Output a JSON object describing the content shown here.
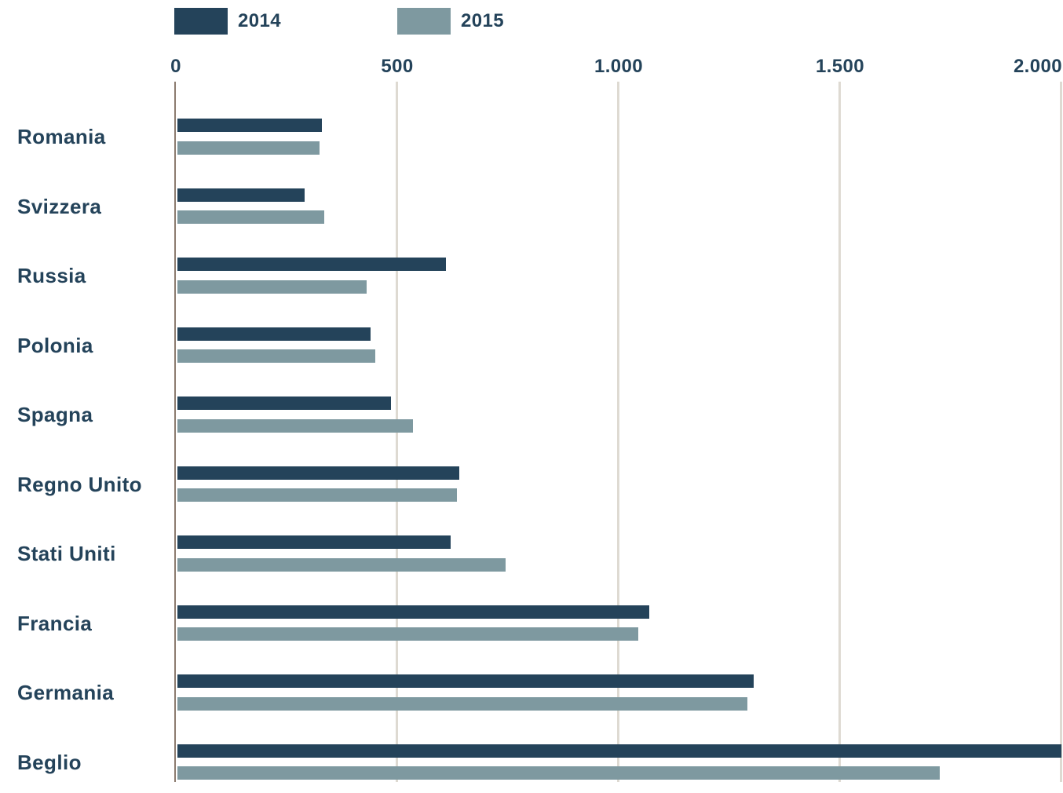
{
  "chart_data": {
    "type": "bar",
    "orientation": "horizontal",
    "title": "",
    "xlabel": "",
    "ylabel": "",
    "xlim": [
      0,
      2000
    ],
    "grid": true,
    "legend_position": "top",
    "categories": [
      "Romania",
      "Svizzera",
      "Russia",
      "Polonia",
      "Spagna",
      "Regno Unito",
      "Stati Uniti",
      "Francia",
      "Germania",
      "Beglio"
    ],
    "series": [
      {
        "name": "2014",
        "color": "#24435A",
        "values": [
          330,
          290,
          610,
          440,
          485,
          640,
          620,
          1070,
          1305,
          2000
        ]
      },
      {
        "name": "2015",
        "color": "#7E99A0",
        "values": [
          325,
          335,
          430,
          450,
          535,
          635,
          745,
          1045,
          1290,
          1725
        ]
      }
    ],
    "x_ticks": [
      {
        "value": 0,
        "label": "0"
      },
      {
        "value": 500,
        "label": "500"
      },
      {
        "value": 1000,
        "label": "1.000"
      },
      {
        "value": 1500,
        "label": "1.500"
      },
      {
        "value": 2000,
        "label": "2.000"
      }
    ]
  },
  "legend": {
    "items": [
      {
        "label": "2014",
        "color": "#24435A"
      },
      {
        "label": "2015",
        "color": "#7E99A0"
      }
    ]
  },
  "colors": {
    "series_2014": "#24435A",
    "series_2015": "#7E99A0",
    "axis_line": "#8C7B6F",
    "gridline": "#DEDAD2",
    "label_text": "#24435A",
    "background": "#FFFFFF"
  }
}
